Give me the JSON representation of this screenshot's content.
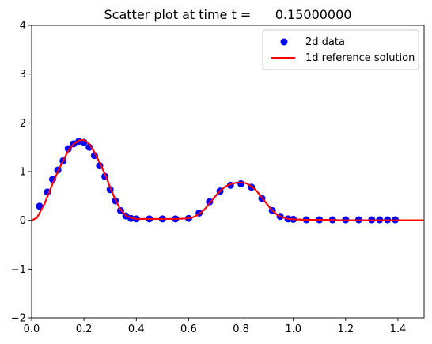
{
  "chart_data": {
    "type": "scatter",
    "title": "Scatter plot at time t =      0.15000000",
    "xlabel": "",
    "ylabel": "",
    "xlim": [
      0,
      1.5
    ],
    "ylim": [
      -2,
      4
    ],
    "xticks": [
      "0.0",
      "0.2",
      "0.4",
      "0.6",
      "0.8",
      "1.0",
      "1.2",
      "1.4"
    ],
    "yticks": [
      "-2",
      "-1",
      "0",
      "1",
      "2",
      "3",
      "4"
    ],
    "grid": false,
    "legend_position": "top-right",
    "series": [
      {
        "name": "2d data",
        "kind": "scatter",
        "color": "#0000ff",
        "marker": "circle",
        "x": [
          0.03,
          0.06,
          0.08,
          0.1,
          0.12,
          0.14,
          0.16,
          0.18,
          0.2,
          0.22,
          0.24,
          0.26,
          0.28,
          0.3,
          0.32,
          0.34,
          0.36,
          0.38,
          0.4,
          0.45,
          0.5,
          0.55,
          0.6,
          0.64,
          0.68,
          0.72,
          0.76,
          0.8,
          0.84,
          0.88,
          0.92,
          0.95,
          0.98,
          1.0,
          1.05,
          1.1,
          1.15,
          1.2,
          1.25,
          1.3,
          1.33,
          1.36,
          1.39
        ],
        "y": [
          0.29,
          0.58,
          0.84,
          1.03,
          1.22,
          1.47,
          1.57,
          1.62,
          1.6,
          1.5,
          1.33,
          1.12,
          0.9,
          0.63,
          0.4,
          0.2,
          0.09,
          0.04,
          0.03,
          0.03,
          0.03,
          0.03,
          0.04,
          0.15,
          0.38,
          0.6,
          0.72,
          0.75,
          0.68,
          0.45,
          0.2,
          0.08,
          0.03,
          0.02,
          0.01,
          0.01,
          0.01,
          0.01,
          0.01,
          0.01,
          0.01,
          0.01,
          0.01
        ]
      },
      {
        "name": "1d reference solution",
        "kind": "line",
        "color": "#ff0000",
        "x": [
          0.0,
          0.02,
          0.05,
          0.08,
          0.1,
          0.12,
          0.14,
          0.16,
          0.18,
          0.2,
          0.22,
          0.24,
          0.26,
          0.28,
          0.3,
          0.32,
          0.34,
          0.36,
          0.38,
          0.4,
          0.45,
          0.5,
          0.55,
          0.6,
          0.62,
          0.64,
          0.66,
          0.68,
          0.7,
          0.72,
          0.74,
          0.76,
          0.78,
          0.8,
          0.82,
          0.84,
          0.86,
          0.88,
          0.9,
          0.92,
          0.94,
          0.96,
          0.98,
          1.0,
          1.05,
          1.1,
          1.2,
          1.3,
          1.4,
          1.5
        ],
        "y": [
          0.0,
          0.05,
          0.35,
          0.75,
          1.0,
          1.22,
          1.43,
          1.56,
          1.64,
          1.65,
          1.57,
          1.4,
          1.18,
          0.95,
          0.68,
          0.42,
          0.22,
          0.1,
          0.05,
          0.03,
          0.03,
          0.03,
          0.03,
          0.04,
          0.07,
          0.13,
          0.22,
          0.35,
          0.48,
          0.6,
          0.69,
          0.74,
          0.77,
          0.78,
          0.76,
          0.7,
          0.6,
          0.47,
          0.33,
          0.2,
          0.11,
          0.06,
          0.03,
          0.02,
          0.01,
          0.01,
          0.0,
          0.0,
          0.0,
          0.0
        ]
      }
    ]
  }
}
